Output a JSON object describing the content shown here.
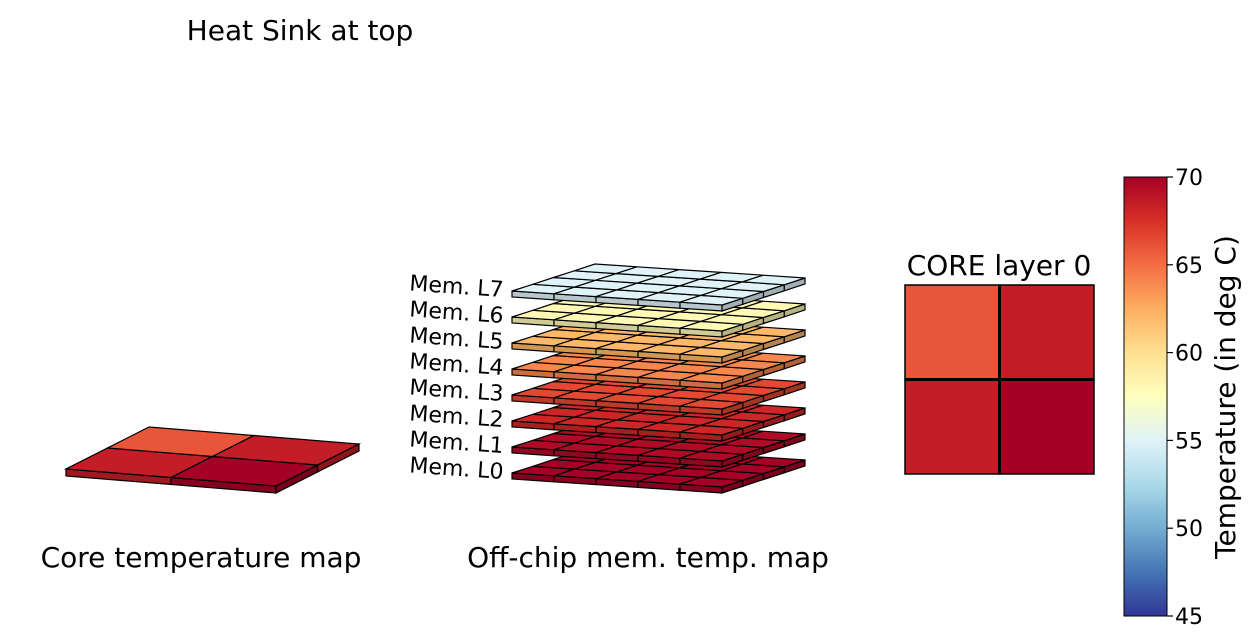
{
  "texts": {
    "heat_sink": "Heat Sink at top",
    "core_map_title": "Core temperature map",
    "mem_map_title": "Off-chip mem. temp. map",
    "core_layer_title": "CORE layer 0"
  },
  "chart_data": [
    {
      "type": "heatmap",
      "name": "Core temperature map",
      "title": "Core temperature map",
      "rows": 2,
      "cols": 2,
      "values": [
        [
          66,
          68.5
        ],
        [
          68.5,
          70
        ]
      ]
    },
    {
      "type": "heatmap",
      "name": "Off-chip mem. temp. map",
      "title": "Off-chip mem. temp. map",
      "rows": 4,
      "cols": 5,
      "layers": [
        {
          "label": "Mem. L0",
          "value": 70
        },
        {
          "label": "Mem. L1",
          "value": 69.5
        },
        {
          "label": "Mem. L2",
          "value": 68
        },
        {
          "label": "Mem. L3",
          "value": 66.5
        },
        {
          "label": "Mem. L4",
          "value": 64
        },
        {
          "label": "Mem. L5",
          "value": 62
        },
        {
          "label": "Mem. L6",
          "value": 58
        },
        {
          "label": "Mem. L7",
          "value": 55
        }
      ]
    },
    {
      "type": "heatmap",
      "name": "CORE layer 0",
      "title": "CORE layer 0",
      "rows": 2,
      "cols": 2,
      "values": [
        [
          66,
          68.5
        ],
        [
          68.5,
          70
        ]
      ]
    }
  ],
  "colorbar": {
    "label": "Temperature (in deg C)",
    "min": 45,
    "max": 70,
    "ticks": [
      45,
      50,
      55,
      60,
      65,
      70
    ],
    "colormap": "RdYlBu_r",
    "stops": [
      {
        "t": 0.0,
        "color": "#313695"
      },
      {
        "t": 0.1,
        "color": "#4575b4"
      },
      {
        "t": 0.2,
        "color": "#74add1"
      },
      {
        "t": 0.3,
        "color": "#abd9e9"
      },
      {
        "t": 0.4,
        "color": "#e0f3f8"
      },
      {
        "t": 0.5,
        "color": "#ffffbf"
      },
      {
        "t": 0.6,
        "color": "#fee090"
      },
      {
        "t": 0.7,
        "color": "#fdae61"
      },
      {
        "t": 0.8,
        "color": "#f46d43"
      },
      {
        "t": 0.9,
        "color": "#d73027"
      },
      {
        "t": 1.0,
        "color": "#a50026"
      }
    ]
  }
}
